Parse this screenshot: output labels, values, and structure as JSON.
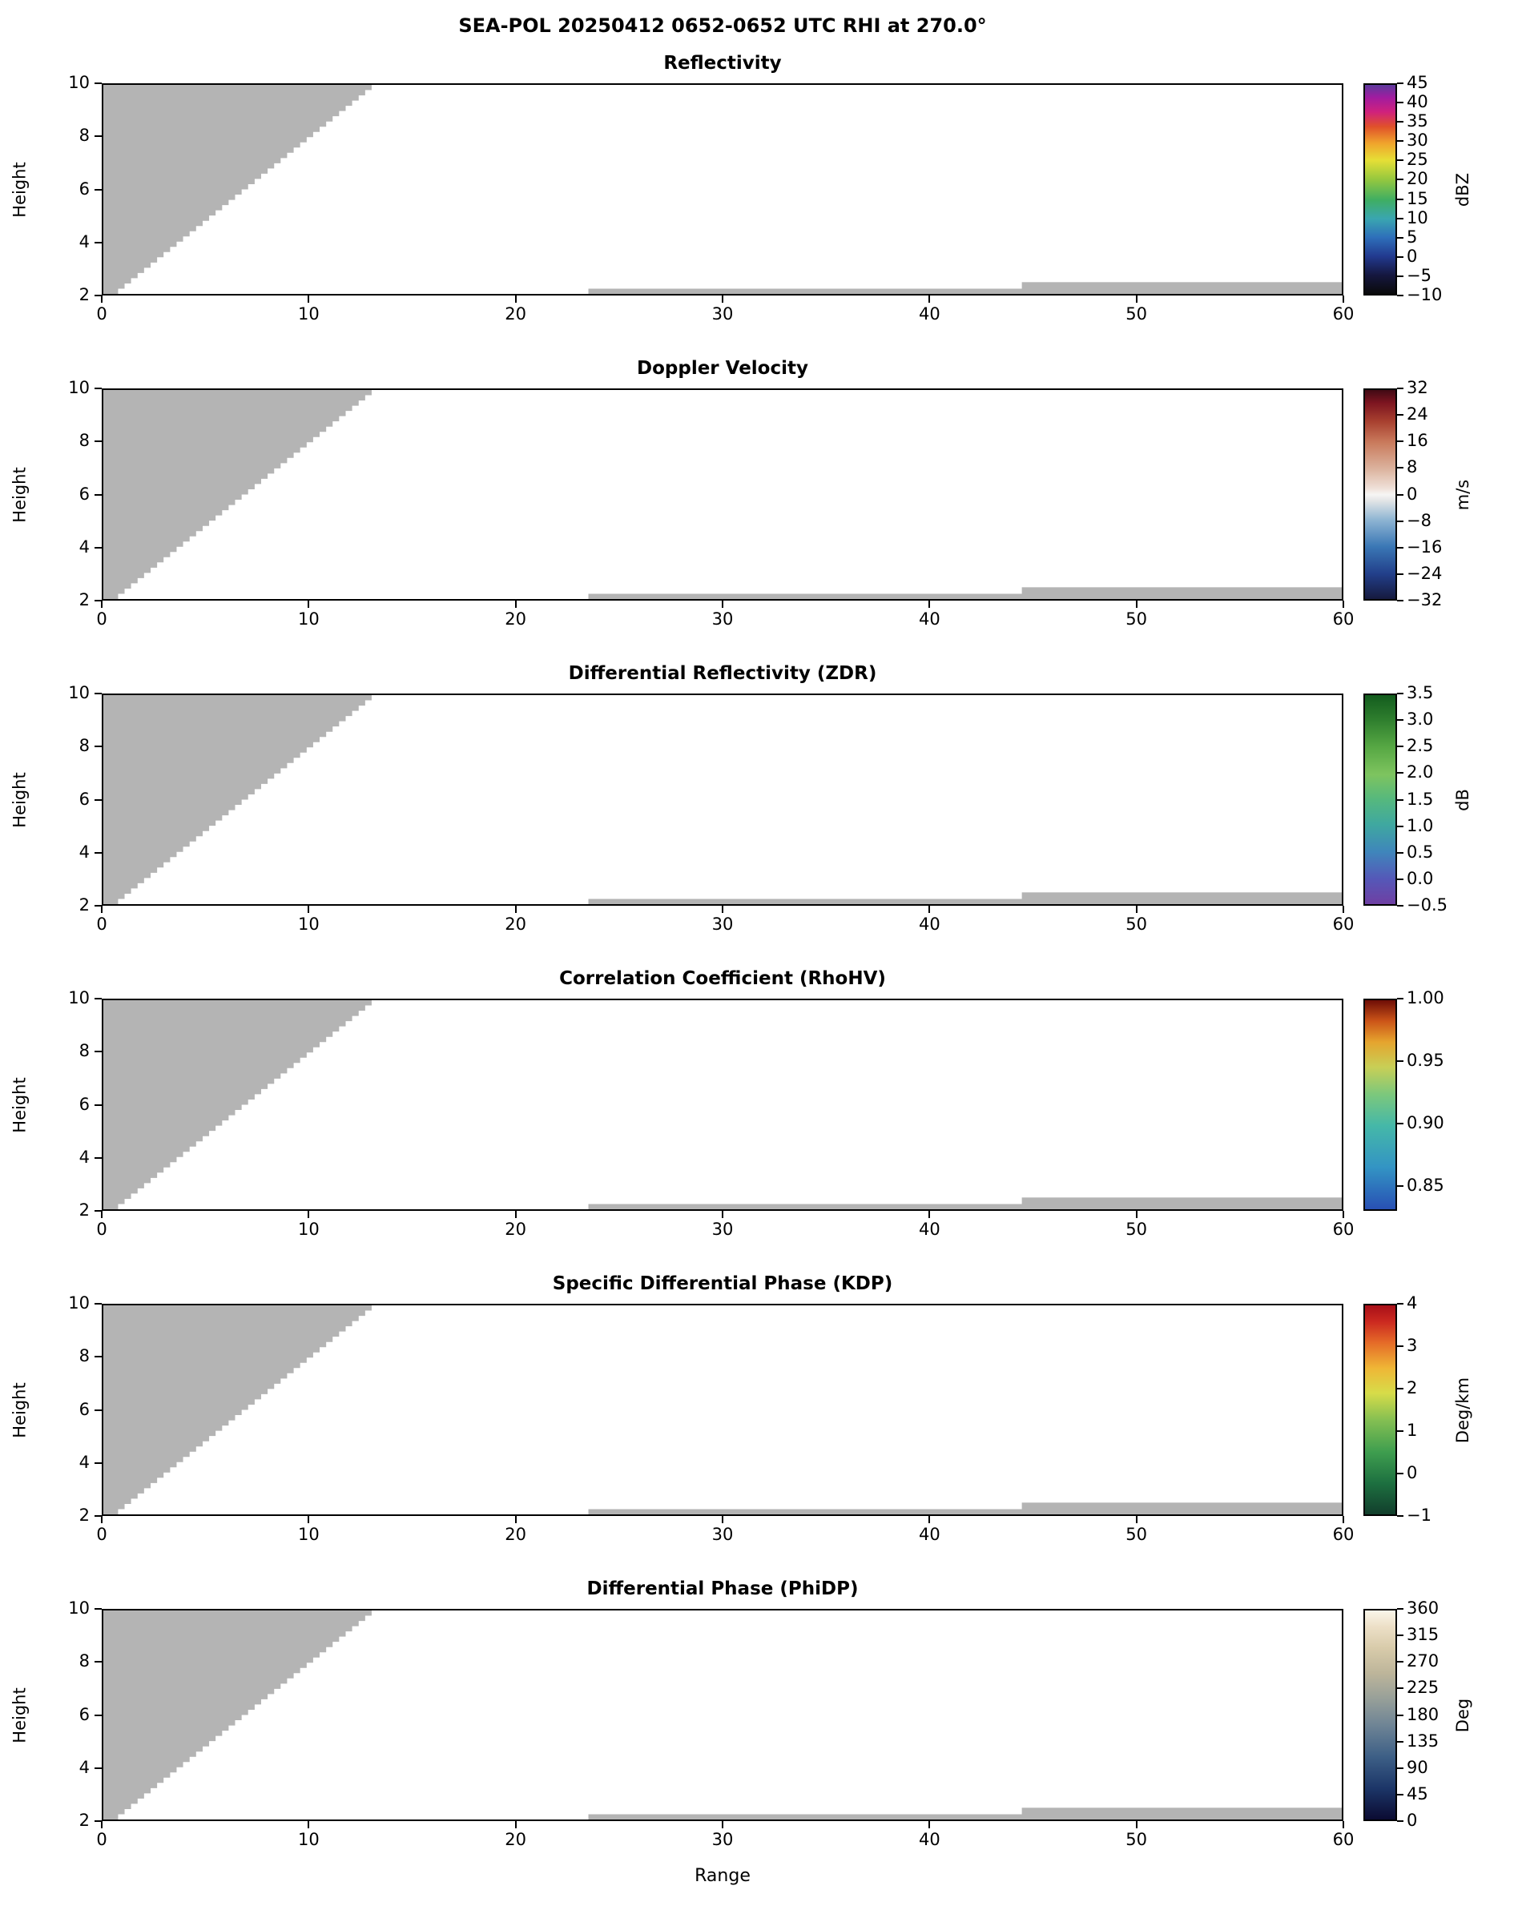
{
  "header": {
    "title": "SEA-POL 20250412 0652-0652 UTC RHI at 270.0°"
  },
  "axes": {
    "xlabel": "Range",
    "ylabel": "Height",
    "x_ticks": [
      0,
      10,
      20,
      30,
      40,
      50,
      60
    ],
    "y_ticks": [
      2,
      4,
      6,
      8,
      10
    ],
    "xlim": [
      0,
      60
    ],
    "ylim": [
      2,
      10
    ]
  },
  "panels": [
    {
      "title": "Reflectivity",
      "unit": "dBZ",
      "vmin": -10,
      "vmax": 45,
      "cticks": [
        {
          "v": 45,
          "label": "45"
        },
        {
          "v": 40,
          "label": "40"
        },
        {
          "v": 35,
          "label": "35"
        },
        {
          "v": 30,
          "label": "30"
        },
        {
          "v": 25,
          "label": "25"
        },
        {
          "v": 20,
          "label": "20"
        },
        {
          "v": 15,
          "label": "15"
        },
        {
          "v": 10,
          "label": "10"
        },
        {
          "v": 5,
          "label": "5"
        },
        {
          "v": 0,
          "label": "0"
        },
        {
          "v": -5,
          "label": "−5"
        },
        {
          "v": -10,
          "label": "−10"
        }
      ],
      "gradient": [
        "#0a0a0a 0%",
        "#15173f 9%",
        "#223a8f 18%",
        "#2e6fba 27%",
        "#3aa6b0 36%",
        "#3fae62 45%",
        "#97c83e 55%",
        "#e6df36 64%",
        "#f0a42c 72%",
        "#e0512a 80%",
        "#d0217c 87%",
        "#a11ca0 94%",
        "#5c3a9c 100%"
      ]
    },
    {
      "title": "Doppler Velocity",
      "unit": "m/s",
      "vmin": -32,
      "vmax": 32,
      "cticks": [
        {
          "v": 32,
          "label": "32"
        },
        {
          "v": 24,
          "label": "24"
        },
        {
          "v": 16,
          "label": "16"
        },
        {
          "v": 8,
          "label": "8"
        },
        {
          "v": 0,
          "label": "0"
        },
        {
          "v": -8,
          "label": "−8"
        },
        {
          "v": -16,
          "label": "−16"
        },
        {
          "v": -24,
          "label": "−24"
        },
        {
          "v": -32,
          "label": "−32"
        }
      ],
      "gradient": [
        "#161a3e 0%",
        "#223f8a 12%",
        "#3a77b5 25%",
        "#8fb5d3 38%",
        "#e2e4e6 47%",
        "#f6f5f4 50%",
        "#efe0d8 53%",
        "#dcb49f 62%",
        "#c97a5c 75%",
        "#a8402f 85%",
        "#7c1420 94%",
        "#400a14 100%"
      ]
    },
    {
      "title": "Differential Reflectivity (ZDR)",
      "unit": "dB",
      "vmin": -0.5,
      "vmax": 3.5,
      "cticks": [
        {
          "v": 3.5,
          "label": "3.5"
        },
        {
          "v": 3.0,
          "label": "3.0"
        },
        {
          "v": 2.5,
          "label": "2.5"
        },
        {
          "v": 2.0,
          "label": "2.0"
        },
        {
          "v": 1.5,
          "label": "1.5"
        },
        {
          "v": 1.0,
          "label": "1.0"
        },
        {
          "v": 0.5,
          "label": "0.5"
        },
        {
          "v": 0.0,
          "label": "0.0"
        },
        {
          "v": -0.5,
          "label": "−0.5"
        }
      ],
      "gradient": [
        "#6f3fa3 0%",
        "#5558b8 12%",
        "#3f86bb 25%",
        "#3fa8a0 38%",
        "#55b87e 50%",
        "#7ec45f 62%",
        "#57a844 75%",
        "#2f7f2e 88%",
        "#135c1e 100%"
      ]
    },
    {
      "title": "Correlation Coefficient (RhoHV)",
      "unit": "",
      "vmin": 0.83,
      "vmax": 1.0,
      "cticks": [
        {
          "v": 1.0,
          "label": "1.00"
        },
        {
          "v": 0.95,
          "label": "0.95"
        },
        {
          "v": 0.9,
          "label": "0.90"
        },
        {
          "v": 0.85,
          "label": "0.85"
        }
      ],
      "gradient": [
        "#2850b4 0%",
        "#3394c4 20%",
        "#45b8a8 40%",
        "#7cc87c 55%",
        "#c8cf56 68%",
        "#e5a42e 80%",
        "#cc5518 90%",
        "#6e0d06 100%"
      ]
    },
    {
      "title": "Specific Differential Phase (KDP)",
      "unit": "Deg/km",
      "vmin": -1,
      "vmax": 4,
      "cticks": [
        {
          "v": 4,
          "label": "4"
        },
        {
          "v": 3,
          "label": "3"
        },
        {
          "v": 2,
          "label": "2"
        },
        {
          "v": 1,
          "label": "1"
        },
        {
          "v": 0,
          "label": "0"
        },
        {
          "v": -1,
          "label": "−1"
        }
      ],
      "gradient": [
        "#123e2c 0%",
        "#1d7040 15%",
        "#3f9e4f 30%",
        "#84bf52 45%",
        "#d7dc49 58%",
        "#efb636 70%",
        "#e56c28 82%",
        "#cc2a20 92%",
        "#a80f18 100%"
      ]
    },
    {
      "title": "Differential Phase (PhiDP)",
      "unit": "Deg",
      "vmin": 0,
      "vmax": 360,
      "cticks": [
        {
          "v": 360,
          "label": "360"
        },
        {
          "v": 315,
          "label": "315"
        },
        {
          "v": 270,
          "label": "270"
        },
        {
          "v": 225,
          "label": "225"
        },
        {
          "v": 180,
          "label": "180"
        },
        {
          "v": 135,
          "label": "135"
        },
        {
          "v": 90,
          "label": "90"
        },
        {
          "v": 45,
          "label": "45"
        },
        {
          "v": 0,
          "label": "0"
        }
      ],
      "gradient": [
        "#0b0b32 0%",
        "#1c3668 15%",
        "#3d5f86 30%",
        "#6e8495 45%",
        "#98a099 58%",
        "#bdb59a 70%",
        "#d8cbaa 82%",
        "#ecdfc6 92%",
        "#faf6ea 100%"
      ]
    }
  ],
  "chart_data": {
    "type": "heatmap",
    "title": "SEA-POL 20250412 0652-0652 UTC RHI at 270.0°",
    "xlabel": "Range",
    "ylabel": "Height",
    "xlim": [
      0,
      60
    ],
    "ylim": [
      2,
      10
    ],
    "panels": [
      {
        "title": "Reflectivity",
        "unit": "dBZ",
        "range": [
          -10,
          45
        ],
        "ticks": [
          45,
          40,
          35,
          30,
          25,
          20,
          15,
          10,
          5,
          0,
          -5,
          -10
        ]
      },
      {
        "title": "Doppler Velocity",
        "unit": "m/s",
        "range": [
          -32,
          32
        ],
        "ticks": [
          32,
          24,
          16,
          8,
          0,
          -8,
          -16,
          -24,
          -32
        ]
      },
      {
        "title": "Differential Reflectivity (ZDR)",
        "unit": "dB",
        "range": [
          -0.5,
          3.5
        ],
        "ticks": [
          3.5,
          3.0,
          2.5,
          2.0,
          1.5,
          1.0,
          0.5,
          0.0,
          -0.5
        ]
      },
      {
        "title": "Correlation Coefficient (RhoHV)",
        "unit": "",
        "range": [
          0.83,
          1.0
        ],
        "ticks": [
          1.0,
          0.95,
          0.9,
          0.85
        ]
      },
      {
        "title": "Specific Differential Phase (KDP)",
        "unit": "Deg/km",
        "range": [
          -1,
          4
        ],
        "ticks": [
          4,
          3,
          2,
          1,
          0,
          -1
        ]
      },
      {
        "title": "Differential Phase (PhiDP)",
        "unit": "Deg",
        "range": [
          0,
          360
        ],
        "ticks": [
          360,
          315,
          270,
          225,
          180,
          135,
          90,
          45,
          0
        ]
      }
    ],
    "data_coverage": {
      "wedge": {
        "x_at_ymin": 0.4,
        "x_at_ymax": 13.0,
        "ymin": 2,
        "ymax": 10,
        "steps": 40
      },
      "strips": [
        {
          "x0": 23.5,
          "x1": 60,
          "y0": 2.0,
          "y1": 2.2
        },
        {
          "x0": 44.5,
          "x1": 60,
          "y0": 2.0,
          "y1": 2.45
        }
      ],
      "fill_color": "#b4b4b4"
    }
  }
}
